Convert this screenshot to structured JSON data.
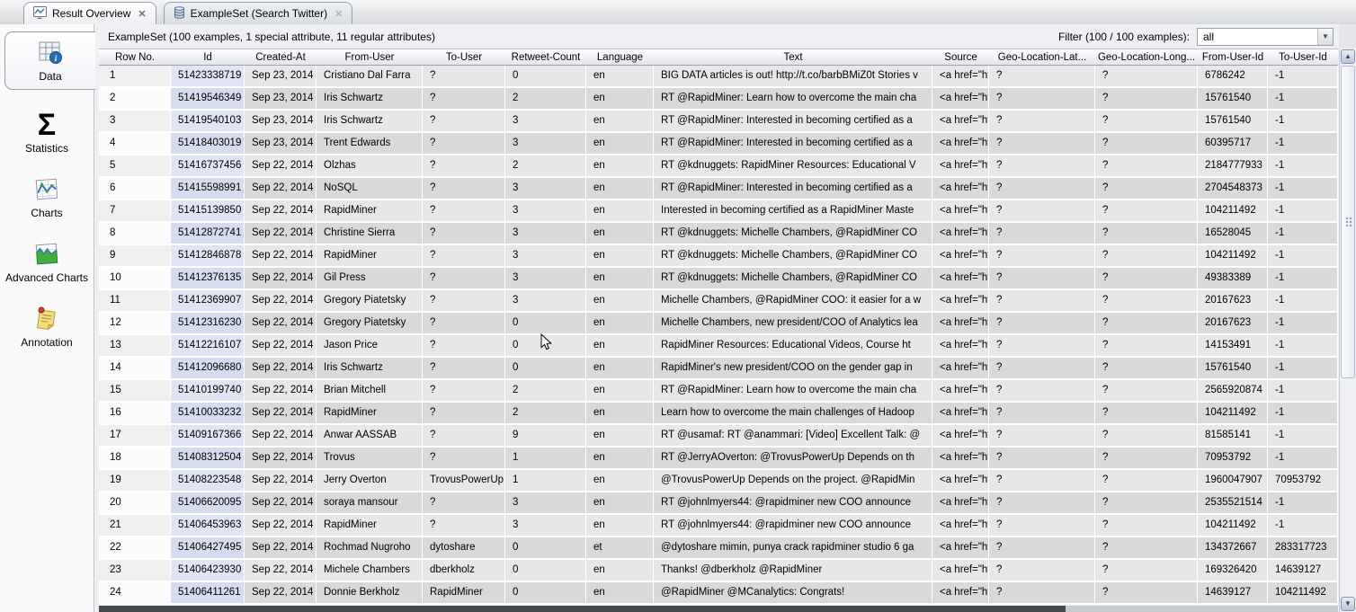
{
  "tabs": [
    {
      "label": "Result Overview",
      "icon": "result-overview-icon",
      "close_label": "✕"
    },
    {
      "label": "ExampleSet (Search Twitter)",
      "icon": "dataset-icon",
      "close_label": "✕"
    }
  ],
  "sidebar": {
    "items": [
      {
        "label": "Data",
        "icon": "data-grid-icon",
        "selected": true
      },
      {
        "label": "Statistics",
        "icon": "sigma-icon",
        "selected": false
      },
      {
        "label": "Charts",
        "icon": "line-chart-icon",
        "selected": false
      },
      {
        "label": "Advanced Charts",
        "icon": "area-chart-icon",
        "selected": false
      },
      {
        "label": "Annotation",
        "icon": "note-icon",
        "selected": false
      }
    ]
  },
  "header": {
    "title": "ExampleSet (100 examples, 1 special attribute, 11 regular attributes)",
    "filter_label": "Filter (100 / 100 examples):",
    "filter_value": "all",
    "dropdown_arrow": "▼"
  },
  "scrollbar": {
    "up_arrow": "▲",
    "down_arrow": "▼"
  },
  "table": {
    "columns": [
      "Row No.",
      "Id",
      "Created-At",
      "From-User",
      "To-User",
      "Retweet-Count",
      "Language",
      "Text",
      "Source",
      "Geo-Location-Lat...",
      "Geo-Location-Long...",
      "From-User-Id",
      "To-User-Id"
    ],
    "rows": [
      [
        "1",
        "51423338719",
        "Sep 23, 2014",
        "Cristiano Dal Farra",
        "?",
        "0",
        "en",
        "BIG DATA articles  is out! http://t.co/barbBMiZ0t Stories v",
        "<a href=\"http:",
        "?",
        "?",
        "6786242",
        "-1"
      ],
      [
        "2",
        "51419546349",
        "Sep 23, 2014",
        "Iris Schwartz",
        "?",
        "2",
        "en",
        "RT @RapidMiner: Learn how to overcome the main cha",
        "<a href=\"http:",
        "?",
        "?",
        "15761540",
        "-1"
      ],
      [
        "3",
        "51419540103",
        "Sep 23, 2014",
        "Iris Schwartz",
        "?",
        "3",
        "en",
        "RT @RapidMiner: Interested in becoming certified as a",
        "<a href=\"http:",
        "?",
        "?",
        "15761540",
        "-1"
      ],
      [
        "4",
        "51418403019",
        "Sep 23, 2014",
        "Trent Edwards",
        "?",
        "3",
        "en",
        "RT @RapidMiner: Interested in becoming certified as a",
        "<a href=\"http:",
        "?",
        "?",
        "60395717",
        "-1"
      ],
      [
        "5",
        "51416737456",
        "Sep 22, 2014",
        "Olzhas",
        "?",
        "2",
        "en",
        "RT @kdnuggets: RapidMiner Resources: Educational V",
        "<a href=\"http:",
        "?",
        "?",
        "2184777933",
        "-1"
      ],
      [
        "6",
        "51415598991",
        "Sep 22, 2014",
        "NoSQL",
        "?",
        "3",
        "en",
        "RT @RapidMiner: Interested in becoming certified as a",
        "<a href=\"http:",
        "?",
        "?",
        "2704548373",
        "-1"
      ],
      [
        "7",
        "51415139850",
        "Sep 22, 2014",
        "RapidMiner",
        "?",
        "3",
        "en",
        "Interested in becoming certified as a RapidMiner Maste",
        "<a href=\"http:",
        "?",
        "?",
        "104211492",
        "-1"
      ],
      [
        "8",
        "51412872741",
        "Sep 22, 2014",
        "Christine Sierra",
        "?",
        "3",
        "en",
        "RT @kdnuggets: Michelle Chambers, @RapidMiner CO",
        "<a href=\"http:",
        "?",
        "?",
        "16528045",
        "-1"
      ],
      [
        "9",
        "51412846878",
        "Sep 22, 2014",
        "RapidMiner",
        "?",
        "3",
        "en",
        "RT @kdnuggets: Michelle Chambers, @RapidMiner CO",
        "<a href=\"http:",
        "?",
        "?",
        "104211492",
        "-1"
      ],
      [
        "10",
        "51412376135",
        "Sep 22, 2014",
        "Gil Press",
        "?",
        "3",
        "en",
        "RT @kdnuggets: Michelle Chambers, @RapidMiner CO",
        "<a href=\"http:",
        "?",
        "?",
        "49383389",
        "-1"
      ],
      [
        "11",
        "51412369907",
        "Sep 22, 2014",
        "Gregory Piatetsky",
        "?",
        "3",
        "en",
        "Michelle Chambers, @RapidMiner COO: it easier for a w",
        "<a href=\"http:",
        "?",
        "?",
        "20167623",
        "-1"
      ],
      [
        "12",
        "51412316230",
        "Sep 22, 2014",
        "Gregory Piatetsky",
        "?",
        "0",
        "en",
        "Michelle Chambers, new president/COO of Analytics lea",
        "<a href=\"http:",
        "?",
        "?",
        "20167623",
        "-1"
      ],
      [
        "13",
        "51412216107",
        "Sep 22, 2014",
        "Jason Price",
        "?",
        "0",
        "en",
        "RapidMiner Resources: Educational Videos, Course ht",
        "<a href=\"https:",
        "?",
        "?",
        "14153491",
        "-1"
      ],
      [
        "14",
        "51412096680",
        "Sep 22, 2014",
        "Iris Schwartz",
        "?",
        "0",
        "en",
        "RapidMiner's new president/COO on the gender gap in",
        "<a href=\"https:",
        "?",
        "?",
        "15761540",
        "-1"
      ],
      [
        "15",
        "51410199740",
        "Sep 22, 2014",
        "Brian Mitchell",
        "?",
        "2",
        "en",
        "RT @RapidMiner: Learn how to overcome the main cha",
        "<a href=\"http:",
        "?",
        "?",
        "2565920874",
        "-1"
      ],
      [
        "16",
        "51410033232",
        "Sep 22, 2014",
        "RapidMiner",
        "?",
        "2",
        "en",
        "Learn how to overcome the main challenges of Hadoop",
        "<a href=\"http:",
        "?",
        "?",
        "104211492",
        "-1"
      ],
      [
        "17",
        "51409167366",
        "Sep 22, 2014",
        "Anwar AASSAB",
        "?",
        "9",
        "en",
        "RT @usamaf: RT @anammari: [Video] Excellent Talk: @",
        "<a href=\"http:",
        "?",
        "?",
        "81585141",
        "-1"
      ],
      [
        "18",
        "51408312504",
        "Sep 22, 2014",
        "Trovus",
        "?",
        "1",
        "en",
        "RT @JerryAOverton: @TrovusPowerUp  Depends on th",
        "<a href=\"http:",
        "?",
        "?",
        "70953792",
        "-1"
      ],
      [
        "19",
        "51408223548",
        "Sep 22, 2014",
        "Jerry Overton",
        "TrovusPowerUp",
        "1",
        "en",
        "@TrovusPowerUp  Depends on the project. @RapidMin",
        "<a href=\"http:",
        "?",
        "?",
        "1960047907",
        "70953792"
      ],
      [
        "20",
        "51406620095",
        "Sep 22, 2014",
        "soraya mansour",
        "?",
        "3",
        "en",
        "RT @johnlmyers44: @rapidminer new COO announce",
        "<a href=\"http:",
        "?",
        "?",
        "2535521514",
        "-1"
      ],
      [
        "21",
        "51406453963",
        "Sep 22, 2014",
        "RapidMiner",
        "?",
        "3",
        "en",
        "RT @johnlmyers44: @rapidminer new COO announce",
        "<a href=\"http:",
        "?",
        "?",
        "104211492",
        "-1"
      ],
      [
        "22",
        "51406427495",
        "Sep 22, 2014",
        "Rochmad Nugroho",
        "dytoshare",
        "0",
        "et",
        "@dytoshare mimin, punya crack rapidminer studio 6 ga",
        "<a href=\"http:",
        "?",
        "?",
        "134372667",
        "283317723"
      ],
      [
        "23",
        "51406423930",
        "Sep 22, 2014",
        "Michele Chambers",
        "dberkholz",
        "0",
        "en",
        "Thanks! @dberkholz @RapidMiner",
        "<a href=\"http:",
        "?",
        "?",
        "169326420",
        "14639127"
      ],
      [
        "24",
        "51406411261",
        "Sep 22, 2014",
        "Donnie Berkholz",
        "RapidMiner",
        "0",
        "en",
        "@RapidMiner @MCanalytics: Congrats!",
        "<a href=\"http:",
        "?",
        "?",
        "14639127",
        "104211492"
      ]
    ]
  }
}
